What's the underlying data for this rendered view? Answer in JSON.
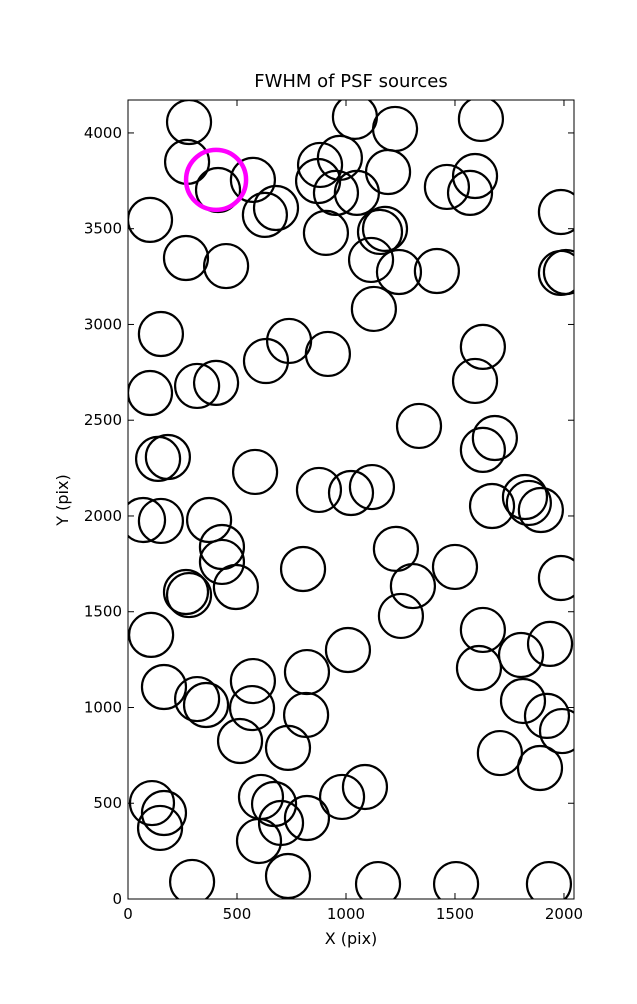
{
  "chart_data": {
    "type": "scatter",
    "title": "FWHM of PSF sources",
    "xlabel": "X (pix)",
    "ylabel": "Y (pix)",
    "xlim": [
      0,
      2046
    ],
    "ylim": [
      0,
      4172
    ],
    "xticks": [
      0,
      500,
      1000,
      1500,
      2000
    ],
    "yticks": [
      0,
      500,
      1000,
      1500,
      2000,
      2500,
      3000,
      3500,
      4000
    ],
    "series": [
      {
        "color": "#000000",
        "x": [
          280,
          271,
          413,
          573,
          628,
          679,
          101,
          266,
          450,
          151,
          101,
          317,
          404,
          633,
          739,
          917,
          1041,
          1225,
          1619,
          881,
          972,
          872,
          954,
          1050,
          1193,
          1463,
          1592,
          1569,
          908,
          1156,
          1179,
          1115,
          1243,
          1417,
          1128,
          1628,
          1592,
          1335,
          1683,
          1628,
          138,
          183,
          583,
          876,
          1023,
          1119,
          1670,
          1821,
          1839,
          1894,
          69,
          151,
          372,
          431,
          431,
          495,
          266,
          280,
          803,
          1229,
          1307,
          1500,
          1252,
          1986,
          106,
          165,
          317,
          358,
          573,
          569,
          821,
          1009,
          1628,
          1610,
          1803,
          1936,
          1812,
          1922,
          1991,
          817,
          514,
          734,
          1706,
          1890,
          110,
          165,
          147,
          610,
          670,
          702,
          601,
          821,
          982,
          1087,
          734,
          294,
          1147,
          1505,
          1931,
          1986,
          1986,
          2009
        ],
        "y": [
          4057,
          3849,
          3702,
          3755,
          3572,
          3608,
          3546,
          3347,
          3305,
          2950,
          2642,
          2679,
          2695,
          2809,
          2914,
          2846,
          4084,
          4021,
          4073,
          3833,
          3870,
          3749,
          3687,
          3687,
          3796,
          3718,
          3775,
          3687,
          3478,
          3483,
          3499,
          3337,
          3274,
          3279,
          3081,
          2883,
          2705,
          2470,
          2407,
          2345,
          2298,
          2308,
          2230,
          2136,
          2120,
          2151,
          2052,
          2099,
          2068,
          2031,
          1979,
          1974,
          1979,
          1838,
          1760,
          1629,
          1603,
          1587,
          1723,
          1828,
          1634,
          1734,
          1478,
          1676,
          1379,
          1107,
          1044,
          1013,
          1138,
          997,
          1185,
          1300,
          1405,
          1206,
          1274,
          1332,
          1034,
          956,
          877,
          961,
          825,
          789,
          762,
          684,
          501,
          449,
          371,
          533,
          496,
          397,
          303,
          423,
          533,
          585,
          120,
          89,
          78,
          78,
          78,
          3587,
          3269,
          3274
        ]
      },
      {
        "color": "#ff00ff",
        "x": [
          404
        ],
        "y": [
          3755
        ]
      }
    ]
  }
}
